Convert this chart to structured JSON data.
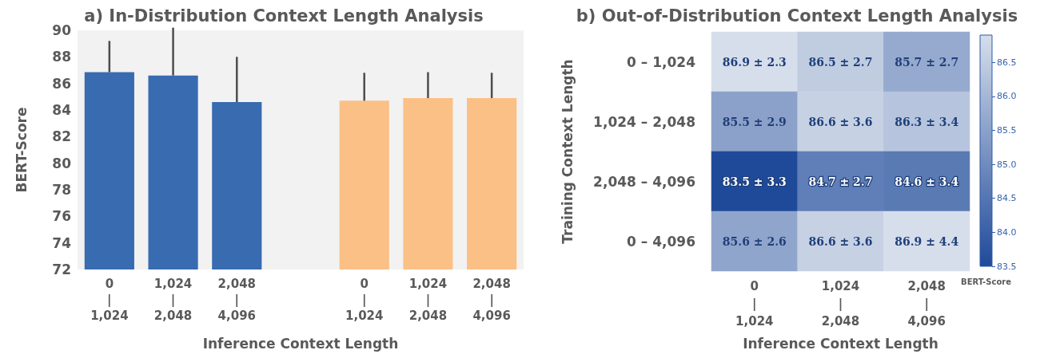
{
  "chart_data": [
    {
      "type": "bar",
      "title": "a) In-Distribution Context Length Analysis",
      "xlabel": "Inference Context Length",
      "ylabel": "BERT-Score",
      "categories": [
        "0\n|\n1,024",
        "1,024\n|\n2,048",
        "2,048\n|\n4,096",
        null,
        "0\n|\n1,024",
        "1,024\n|\n2,048",
        "2,048\n|\n4,096"
      ],
      "series": [
        {
          "color": "#386bb0",
          "values": [
            86.85,
            86.6,
            84.6,
            null,
            null,
            null,
            null
          ],
          "errors": [
            [
              86.85,
              89.2
            ],
            [
              86.6,
              90.2
            ],
            [
              84.6,
              88.0
            ],
            null,
            null,
            null,
            null
          ]
        },
        {
          "color": "#fac086",
          "values": [
            null,
            null,
            null,
            null,
            84.7,
            84.9,
            84.9
          ],
          "errors": [
            null,
            null,
            null,
            null,
            [
              84.7,
              86.8
            ],
            [
              84.9,
              86.85
            ],
            [
              84.9,
              86.8
            ]
          ]
        }
      ],
      "ylim": [
        72,
        90
      ],
      "yticks": [
        72,
        74,
        76,
        78,
        80,
        82,
        84,
        86,
        88,
        90
      ]
    },
    {
      "type": "heatmap",
      "title": "b) Out-of-Distribution Context Length Analysis",
      "xlabel": "Inference Context Length",
      "ylabel": "Training Context Length",
      "clabel": "BERT-Score",
      "categories": [
        "0\n|\n1,024",
        "1,024\n|\n2,048",
        "2,048\n|\n4,096"
      ],
      "y_categories": [
        "0 – 1,024",
        "1,024 – 2,048",
        "2,048 – 4,096",
        "0 – 4,096"
      ],
      "cells": [
        [
          86.9,
          86.5,
          85.7
        ],
        [
          85.5,
          86.6,
          86.3
        ],
        [
          83.5,
          84.7,
          84.6
        ],
        [
          85.6,
          86.6,
          86.9
        ]
      ],
      "cell_labels": [
        [
          "86.9 ± 2.3",
          "86.5 ± 2.7",
          "85.7 ± 2.7"
        ],
        [
          "85.5 ± 2.9",
          "86.6 ± 3.6",
          "86.3 ± 3.4"
        ],
        [
          "83.5 ± 3.3",
          "84.7 ± 2.7",
          "84.6 ± 3.4"
        ],
        [
          "85.6 ± 2.6",
          "86.6 ± 3.6",
          "86.9 ± 4.4"
        ]
      ],
      "clim": [
        83.5,
        86.9
      ],
      "cticks": [
        83.5,
        {
          "value": 84,
          "label": "84.0"
        },
        84.5,
        {
          "value": 85,
          "label": "85.0"
        },
        85.5,
        {
          "value": 86,
          "label": "86.0"
        },
        86.5
      ]
    }
  ]
}
